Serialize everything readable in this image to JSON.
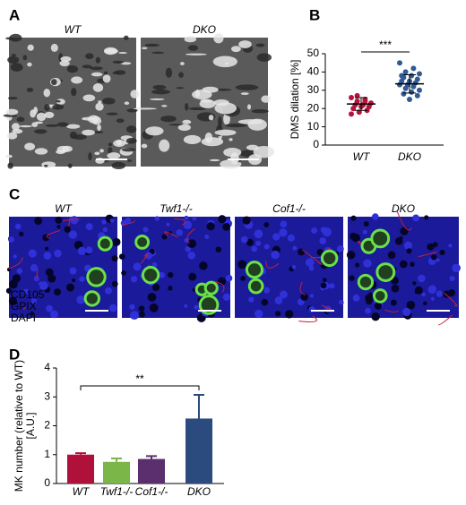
{
  "figure": {
    "panel_a": {
      "letter": "A",
      "titles": [
        "WT",
        "DKO"
      ]
    },
    "panel_c": {
      "letter": "C",
      "titles": [
        "WT",
        "Twf1-/-",
        "Cof1-/-",
        "DKO"
      ],
      "stains": [
        "CD105",
        "GPIX",
        "DAPI"
      ]
    }
  },
  "chart_data": [
    {
      "type": "dot",
      "letter": "B",
      "ylabel": "DMS dilation [%]",
      "categories": [
        "WT",
        "DKO"
      ],
      "colors": [
        "#b5123c",
        "#2f5a93"
      ],
      "points": [
        [
          26,
          25,
          24,
          23,
          22,
          22,
          21,
          21,
          20,
          19,
          18,
          17,
          24,
          27
        ],
        [
          45,
          42,
          40,
          39,
          38,
          37,
          36,
          35,
          35,
          34,
          33,
          33,
          32,
          31,
          30,
          29,
          28,
          27,
          25,
          38
        ]
      ],
      "means": [
        22.5,
        33.5
      ],
      "errors": [
        3.5,
        5
      ],
      "ylim": [
        0,
        50
      ],
      "yticks": [
        0,
        10,
        20,
        30,
        40,
        50
      ],
      "significance": "***"
    },
    {
      "type": "bar",
      "letter": "D",
      "ylabel": [
        "MK number (relative to WT)",
        "[A.U.]"
      ],
      "categories": [
        "WT",
        "Twf1-/-",
        "Cof1-/-",
        "DKO"
      ],
      "values": [
        1.0,
        0.75,
        0.85,
        2.25
      ],
      "errors": [
        0.05,
        0.12,
        0.1,
        0.82
      ],
      "colors": [
        "#b0113a",
        "#7ab648",
        "#5b2e6e",
        "#2b4b7e"
      ],
      "ylim": [
        0,
        4
      ],
      "yticks": [
        0,
        1,
        2,
        3,
        4
      ],
      "significance": "**"
    }
  ]
}
